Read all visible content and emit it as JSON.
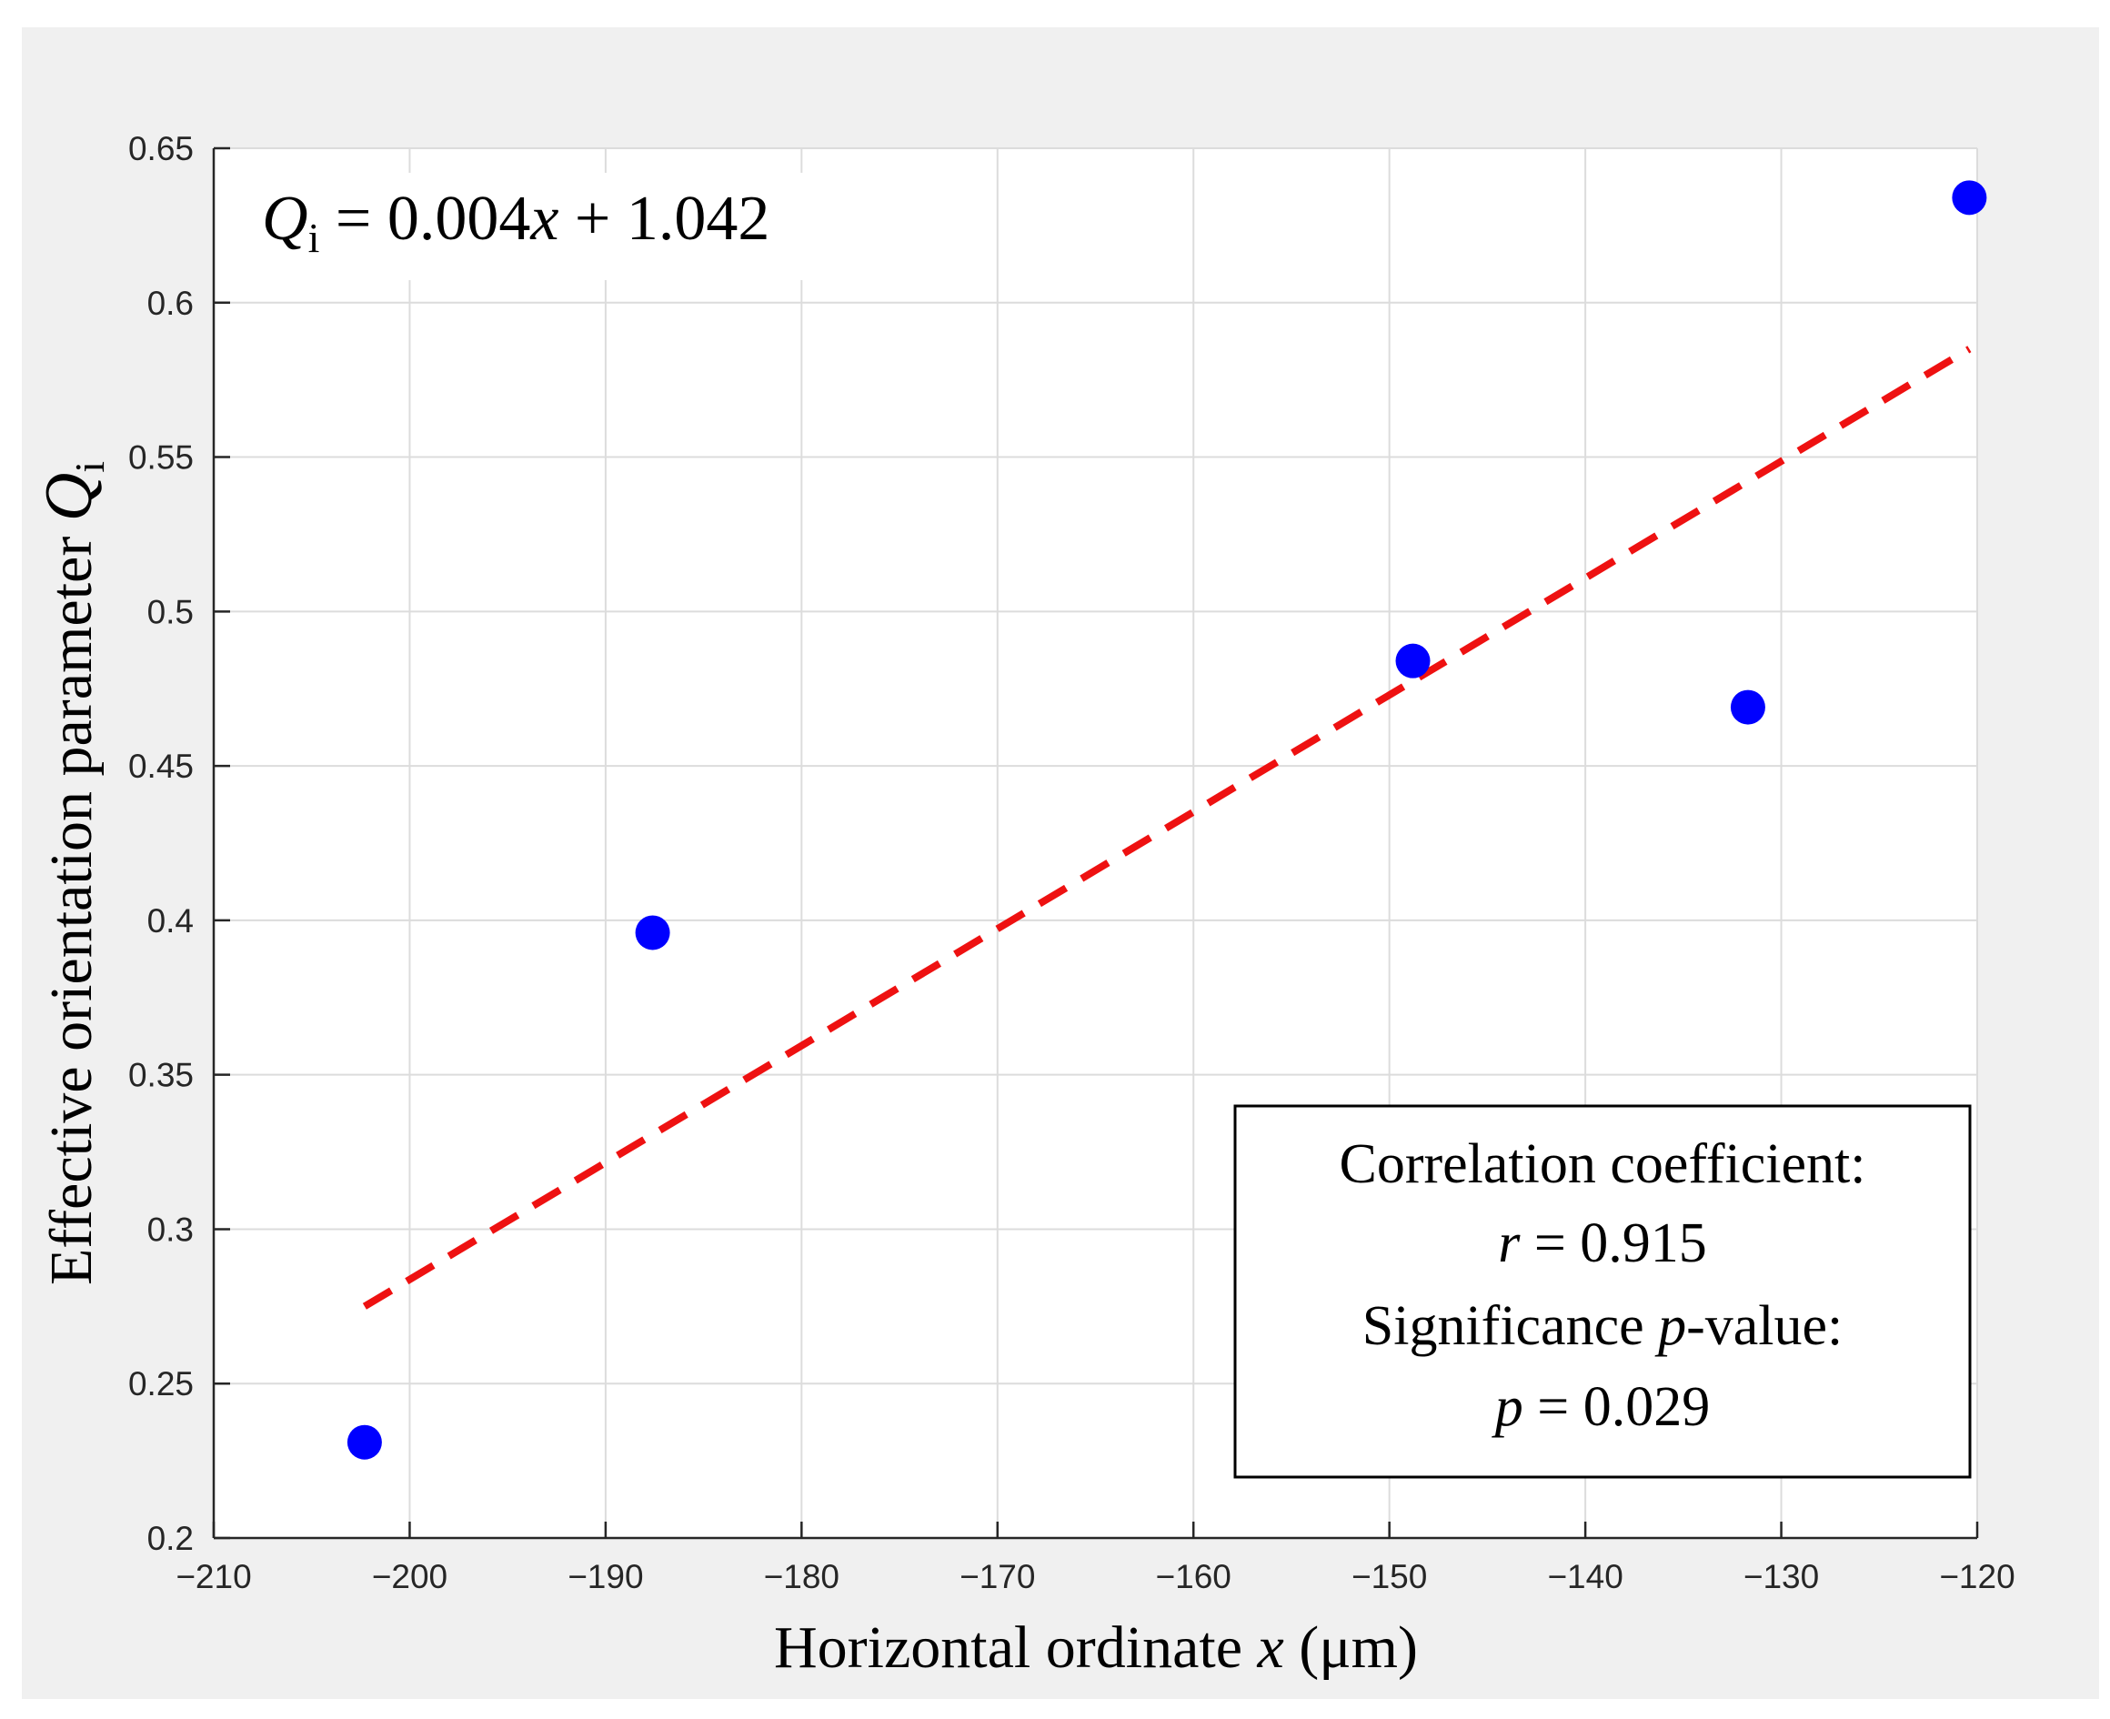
{
  "chart_data": {
    "type": "scatter",
    "title": "",
    "xlabel": "Horizontal ordinate",
    "xlabel_var": "x",
    "xlabel_unit": " (μm)",
    "ylabel": "Effective orientation parameter ",
    "ylabel_var": "Q",
    "ylabel_sub": "i",
    "xlim": [
      -210,
      -120
    ],
    "ylim": [
      0.2,
      0.65
    ],
    "xticks": [
      -210,
      -200,
      -190,
      -180,
      -170,
      -160,
      -150,
      -140,
      -130,
      -120
    ],
    "xtick_labels": [
      "−210",
      "−200",
      "−190",
      "−180",
      "−170",
      "−160",
      "−150",
      "−140",
      "−130",
      "−120"
    ],
    "yticks": [
      0.2,
      0.25,
      0.3,
      0.35,
      0.4,
      0.45,
      0.5,
      0.55,
      0.6,
      0.65
    ],
    "ytick_labels": [
      "0.2",
      "0.25",
      "0.3",
      "0.35",
      "0.4",
      "0.45",
      "0.5",
      "0.55",
      "0.6",
      "0.65"
    ],
    "grid": true,
    "series": [
      {
        "type": "scatter",
        "color": "#0000ff",
        "x": [
          -202.3,
          -187.6,
          -148.8,
          -131.7,
          -120.4
        ],
        "y": [
          0.231,
          0.396,
          0.484,
          0.469,
          0.634
        ]
      },
      {
        "type": "line",
        "style": "dashed",
        "color": "#ee1111",
        "x": [
          -202.3,
          -120.4
        ],
        "y": [
          0.275,
          0.585
        ]
      }
    ],
    "equation": {
      "var": "Q",
      "sub": "i",
      "rest_a": " = 0.004",
      "xvar": "x",
      "rest_b": " + 1.042"
    },
    "stats_box": {
      "placement": "bottom-right",
      "line1": "Correlation coefficient:",
      "line2_var": "r",
      "line2_rest": " = 0.915",
      "line3_pre": "Significance ",
      "line3_var": "p",
      "line3_post": "-value:",
      "line4_var": "p",
      "line4_rest": " = 0.029"
    }
  },
  "colors": {
    "figure_background": "#f0f0f0",
    "axes_background": "#ffffff",
    "grid": "#dcdcdc",
    "axis": "#262626",
    "points": "#0000ff",
    "fit_line": "#ee1111"
  }
}
